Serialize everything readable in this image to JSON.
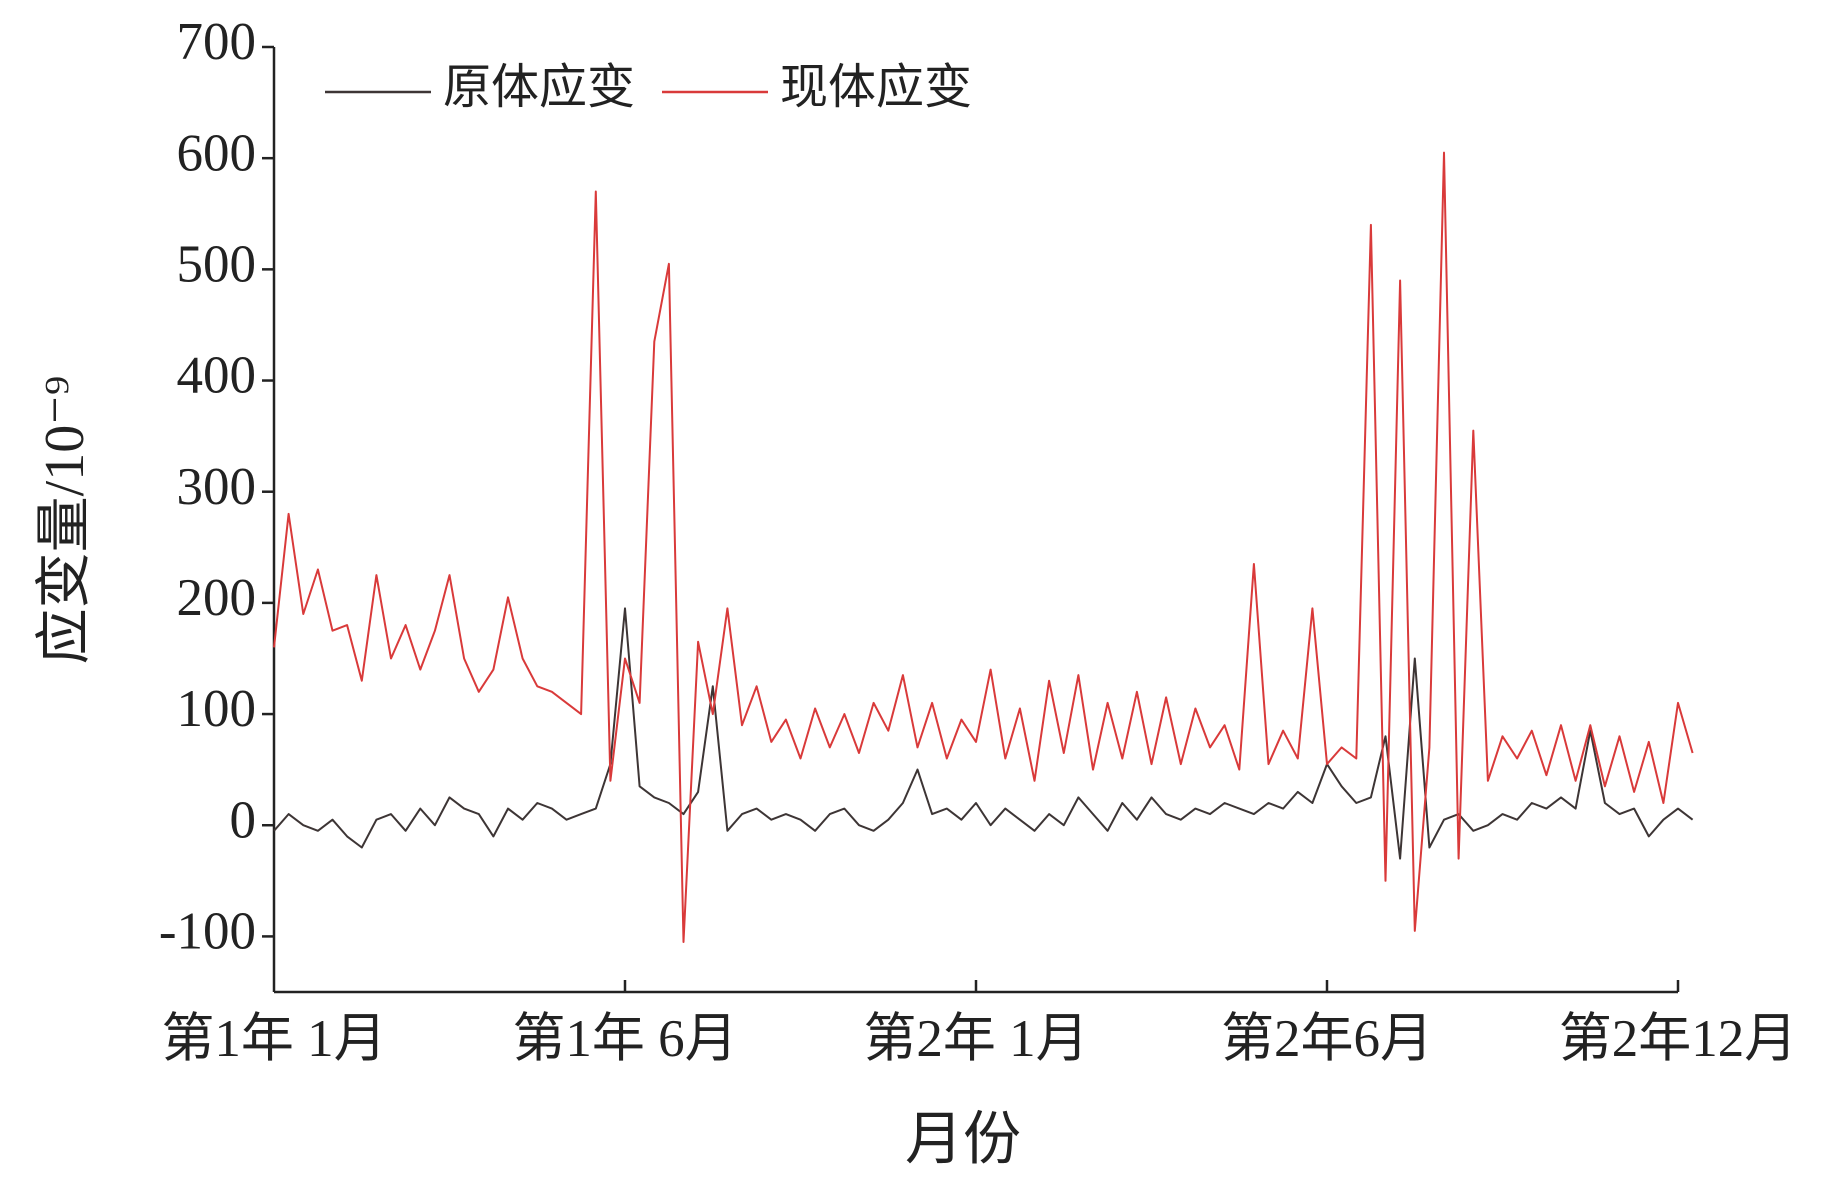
{
  "chart_data": {
    "type": "line",
    "x_label": "月份",
    "y_label": "应变量/10⁻⁹",
    "categories": [
      "第1年 1月",
      null,
      null,
      null,
      null,
      null,
      null,
      null,
      null,
      null,
      null,
      null,
      null,
      null,
      null,
      null,
      null,
      null,
      null,
      null,
      null,
      null,
      null,
      null,
      "第1年 6月",
      null,
      null,
      null,
      null,
      null,
      null,
      null,
      null,
      null,
      null,
      null,
      null,
      null,
      null,
      null,
      null,
      null,
      null,
      null,
      null,
      null,
      null,
      null,
      "第2年 1月",
      null,
      null,
      null,
      null,
      null,
      null,
      null,
      null,
      null,
      null,
      null,
      null,
      null,
      null,
      null,
      null,
      null,
      null,
      null,
      null,
      null,
      null,
      null,
      "第2年6月",
      null,
      null,
      null,
      null,
      null,
      null,
      null,
      null,
      null,
      null,
      null,
      null,
      null,
      null,
      null,
      null,
      null,
      null,
      null,
      null,
      null,
      null,
      null,
      "第2年12月",
      null
    ],
    "series": [
      {
        "name": "原体应变",
        "color": "#3d3535",
        "values": [
          -5,
          10,
          0,
          -5,
          5,
          -10,
          -20,
          5,
          10,
          -5,
          15,
          0,
          25,
          15,
          10,
          -10,
          15,
          5,
          20,
          15,
          5,
          10,
          15,
          55,
          195,
          35,
          25,
          20,
          10,
          30,
          125,
          -5,
          10,
          15,
          5,
          10,
          5,
          -5,
          10,
          15,
          0,
          -5,
          5,
          20,
          50,
          10,
          15,
          5,
          20,
          0,
          15,
          5,
          -5,
          10,
          0,
          25,
          10,
          -5,
          20,
          5,
          25,
          10,
          5,
          15,
          10,
          20,
          15,
          10,
          20,
          15,
          30,
          20,
          55,
          35,
          20,
          25,
          80,
          -30,
          150,
          -20,
          5,
          10,
          -5,
          0,
          10,
          5,
          20,
          15,
          25,
          15,
          85,
          20,
          10,
          15,
          -10,
          5,
          15,
          5
        ]
      },
      {
        "name": "现体应变",
        "color": "#d93a3a",
        "values": [
          160,
          280,
          190,
          230,
          175,
          180,
          130,
          225,
          150,
          180,
          140,
          175,
          225,
          150,
          120,
          140,
          205,
          150,
          125,
          120,
          110,
          100,
          570,
          40,
          150,
          110,
          435,
          505,
          -105,
          165,
          100,
          195,
          90,
          125,
          75,
          95,
          60,
          105,
          70,
          100,
          65,
          110,
          85,
          135,
          70,
          110,
          60,
          95,
          75,
          140,
          60,
          105,
          40,
          130,
          65,
          135,
          50,
          110,
          60,
          120,
          55,
          115,
          55,
          105,
          70,
          90,
          50,
          235,
          55,
          85,
          60,
          195,
          55,
          70,
          60,
          540,
          -50,
          490,
          -95,
          70,
          605,
          -30,
          355,
          40,
          80,
          60,
          85,
          45,
          90,
          40,
          90,
          35,
          80,
          30,
          75,
          20,
          110,
          65
        ]
      }
    ],
    "ylim": [
      -150,
      700
    ],
    "yticks": [
      -100,
      0,
      100,
      200,
      300,
      400,
      500,
      600,
      700
    ],
    "grid": false,
    "legend": "top-left"
  }
}
